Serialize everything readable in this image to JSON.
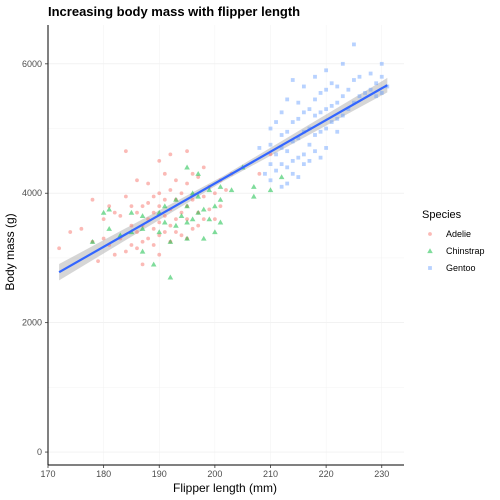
{
  "chart_data": {
    "type": "scatter",
    "title": "Increasing body mass with flipper length",
    "xlabel": "Flipper length (mm)",
    "ylabel": "Body mass (g)",
    "xlim": [
      170,
      234
    ],
    "ylim": [
      -200,
      6600
    ],
    "xticks": [
      170,
      180,
      190,
      200,
      210,
      220,
      230
    ],
    "yticks": [
      0,
      2000,
      4000,
      6000
    ],
    "grid": true,
    "legend": {
      "title": "Species",
      "position": "right"
    },
    "series": [
      {
        "name": "Adelie",
        "color": "#F8766D",
        "marker": "circle",
        "points": [
          [
            172,
            3150
          ],
          [
            174,
            3400
          ],
          [
            176,
            3450
          ],
          [
            178,
            3250
          ],
          [
            178,
            3900
          ],
          [
            179,
            2950
          ],
          [
            180,
            3300
          ],
          [
            180,
            3600
          ],
          [
            181,
            3200
          ],
          [
            181,
            3800
          ],
          [
            182,
            3050
          ],
          [
            182,
            3700
          ],
          [
            183,
            3300
          ],
          [
            183,
            3650
          ],
          [
            184,
            3100
          ],
          [
            184,
            3950
          ],
          [
            184,
            4650
          ],
          [
            185,
            3200
          ],
          [
            185,
            3500
          ],
          [
            185,
            3800
          ],
          [
            186,
            3150
          ],
          [
            186,
            3400
          ],
          [
            186,
            3700
          ],
          [
            186,
            4200
          ],
          [
            187,
            2900
          ],
          [
            187,
            3250
          ],
          [
            187,
            3500
          ],
          [
            187,
            3800
          ],
          [
            188,
            3300
          ],
          [
            188,
            3600
          ],
          [
            188,
            3850
          ],
          [
            188,
            4150
          ],
          [
            189,
            3200
          ],
          [
            189,
            3450
          ],
          [
            189,
            3700
          ],
          [
            189,
            3950
          ],
          [
            190,
            3050
          ],
          [
            190,
            3350
          ],
          [
            190,
            3550
          ],
          [
            190,
            3800
          ],
          [
            190,
            4000
          ],
          [
            190,
            4500
          ],
          [
            191,
            3400
          ],
          [
            191,
            3650
          ],
          [
            191,
            3900
          ],
          [
            191,
            4300
          ],
          [
            192,
            3250
          ],
          [
            192,
            3500
          ],
          [
            192,
            3750
          ],
          [
            192,
            4050
          ],
          [
            192,
            4600
          ],
          [
            193,
            3400
          ],
          [
            193,
            3600
          ],
          [
            193,
            3900
          ],
          [
            193,
            4200
          ],
          [
            194,
            3350
          ],
          [
            194,
            3700
          ],
          [
            194,
            4000
          ],
          [
            195,
            3300
          ],
          [
            195,
            3600
          ],
          [
            195,
            3800
          ],
          [
            195,
            4150
          ],
          [
            195,
            4650
          ],
          [
            196,
            3450
          ],
          [
            196,
            3900
          ],
          [
            196,
            4300
          ],
          [
            197,
            3500
          ],
          [
            197,
            3700
          ],
          [
            197,
            4250
          ],
          [
            198,
            3600
          ],
          [
            198,
            3950
          ],
          [
            198,
            4400
          ],
          [
            199,
            3750
          ],
          [
            199,
            4100
          ],
          [
            200,
            3600
          ],
          [
            200,
            4000
          ],
          [
            201,
            3800
          ],
          [
            201,
            4200
          ],
          [
            202,
            4050
          ],
          [
            203,
            4300
          ],
          [
            208,
            4300
          ],
          [
            210,
            4600
          ]
        ]
      },
      {
        "name": "Chinstrap",
        "color": "#00BA38",
        "marker": "triangle",
        "points": [
          [
            178,
            3250
          ],
          [
            180,
            3700
          ],
          [
            181,
            3450
          ],
          [
            181,
            3750
          ],
          [
            183,
            3350
          ],
          [
            185,
            3400
          ],
          [
            185,
            3700
          ],
          [
            187,
            3100
          ],
          [
            187,
            3450
          ],
          [
            187,
            3650
          ],
          [
            189,
            2900
          ],
          [
            190,
            3400
          ],
          [
            190,
            3700
          ],
          [
            191,
            3800
          ],
          [
            191,
            3550
          ],
          [
            192,
            2700
          ],
          [
            192,
            3250
          ],
          [
            193,
            3500
          ],
          [
            193,
            3900
          ],
          [
            194,
            3650
          ],
          [
            195,
            3300
          ],
          [
            195,
            3550
          ],
          [
            195,
            3800
          ],
          [
            195,
            4400
          ],
          [
            196,
            3600
          ],
          [
            196,
            4000
          ],
          [
            197,
            3700
          ],
          [
            197,
            3950
          ],
          [
            197,
            4300
          ],
          [
            198,
            3300
          ],
          [
            198,
            3750
          ],
          [
            199,
            3600
          ],
          [
            199,
            4050
          ],
          [
            200,
            3400
          ],
          [
            200,
            3800
          ],
          [
            201,
            3550
          ],
          [
            201,
            3900
          ],
          [
            201,
            4100
          ],
          [
            203,
            4050
          ],
          [
            205,
            4400
          ],
          [
            207,
            3950
          ],
          [
            207,
            4100
          ],
          [
            210,
            4050
          ],
          [
            212,
            4250
          ]
        ]
      },
      {
        "name": "Gentoo",
        "color": "#619CFF",
        "marker": "square",
        "points": [
          [
            208,
            4700
          ],
          [
            209,
            4300
          ],
          [
            210,
            4200
          ],
          [
            210,
            4450
          ],
          [
            210,
            4750
          ],
          [
            210,
            5000
          ],
          [
            211,
            4350
          ],
          [
            211,
            4600
          ],
          [
            211,
            5100
          ],
          [
            212,
            4450
          ],
          [
            212,
            4700
          ],
          [
            212,
            4900
          ],
          [
            212,
            5250
          ],
          [
            213,
            4400
          ],
          [
            213,
            4650
          ],
          [
            213,
            4950
          ],
          [
            213,
            5450
          ],
          [
            214,
            4500
          ],
          [
            214,
            4800
          ],
          [
            214,
            5100
          ],
          [
            214,
            5750
          ],
          [
            215,
            4550
          ],
          [
            215,
            4850
          ],
          [
            215,
            5150
          ],
          [
            215,
            5400
          ],
          [
            216,
            4600
          ],
          [
            216,
            4950
          ],
          [
            216,
            5250
          ],
          [
            216,
            5650
          ],
          [
            217,
            4750
          ],
          [
            217,
            5000
          ],
          [
            217,
            5300
          ],
          [
            218,
            4900
          ],
          [
            218,
            5200
          ],
          [
            218,
            5450
          ],
          [
            218,
            5800
          ],
          [
            219,
            4950
          ],
          [
            219,
            5250
          ],
          [
            219,
            5550
          ],
          [
            220,
            5000
          ],
          [
            220,
            5300
          ],
          [
            220,
            5600
          ],
          [
            220,
            5900
          ],
          [
            221,
            5100
          ],
          [
            221,
            5350
          ],
          [
            221,
            5700
          ],
          [
            222,
            5150
          ],
          [
            222,
            5400
          ],
          [
            222,
            5650
          ],
          [
            223,
            5200
          ],
          [
            223,
            5500
          ],
          [
            223,
            6000
          ],
          [
            224,
            5300
          ],
          [
            224,
            5600
          ],
          [
            225,
            5400
          ],
          [
            225,
            5750
          ],
          [
            225,
            6300
          ],
          [
            226,
            5500
          ],
          [
            226,
            5800
          ],
          [
            227,
            5550
          ],
          [
            228,
            5600
          ],
          [
            228,
            5850
          ],
          [
            229,
            5500
          ],
          [
            229,
            5700
          ],
          [
            230,
            5550
          ],
          [
            230,
            5800
          ],
          [
            230,
            6000
          ],
          [
            231,
            5650
          ],
          [
            212,
            4100
          ],
          [
            214,
            4300
          ],
          [
            216,
            4450
          ],
          [
            218,
            4650
          ],
          [
            220,
            4700
          ],
          [
            222,
            4950
          ],
          [
            219,
            4550
          ],
          [
            217,
            4500
          ],
          [
            215,
            4250
          ],
          [
            213,
            4150
          ]
        ]
      }
    ],
    "trendline": {
      "color": "#3366FF",
      "x": [
        172,
        231
      ],
      "y": [
        2780,
        5670
      ],
      "ribbon_halfwidth": 70
    }
  }
}
